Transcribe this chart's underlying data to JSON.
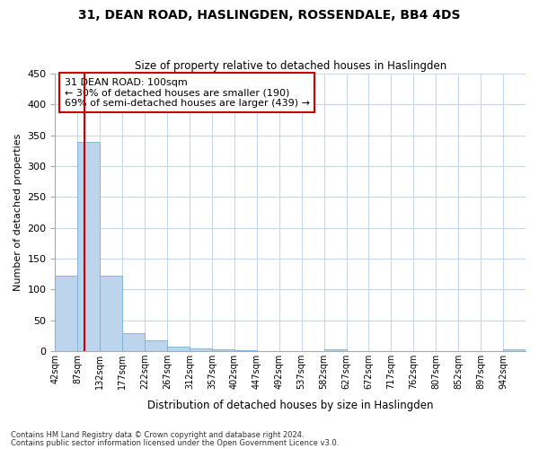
{
  "title1": "31, DEAN ROAD, HASLINGDEN, ROSSENDALE, BB4 4DS",
  "title2": "Size of property relative to detached houses in Haslingden",
  "xlabel": "Distribution of detached houses by size in Haslingden",
  "ylabel": "Number of detached properties",
  "bar_labels": [
    "42sqm",
    "87sqm",
    "132sqm",
    "177sqm",
    "222sqm",
    "267sqm",
    "312sqm",
    "357sqm",
    "402sqm",
    "447sqm",
    "492sqm",
    "537sqm",
    "582sqm",
    "627sqm",
    "672sqm",
    "717sqm",
    "762sqm",
    "807sqm",
    "852sqm",
    "897sqm",
    "942sqm"
  ],
  "bar_values": [
    122,
    340,
    122,
    29,
    17,
    8,
    5,
    3,
    2,
    0,
    0,
    0,
    3,
    0,
    0,
    0,
    0,
    0,
    0,
    0,
    3
  ],
  "bar_color": "#bdd5ec",
  "bar_edge_color": "#7aafd4",
  "property_sqm": 100,
  "annotation_text_line1": "31 DEAN ROAD: 100sqm",
  "annotation_text_line2": "← 30% of detached houses are smaller (190)",
  "annotation_text_line3": "69% of semi-detached houses are larger (439) →",
  "vline_color": "#cc0000",
  "annotation_box_edge": "#cc0000",
  "ylim": [
    0,
    450
  ],
  "yticks": [
    0,
    50,
    100,
    150,
    200,
    250,
    300,
    350,
    400,
    450
  ],
  "footnote1": "Contains HM Land Registry data © Crown copyright and database right 2024.",
  "footnote2": "Contains public sector information licensed under the Open Government Licence v3.0.",
  "background_color": "#ffffff",
  "grid_color": "#c8d8ec"
}
